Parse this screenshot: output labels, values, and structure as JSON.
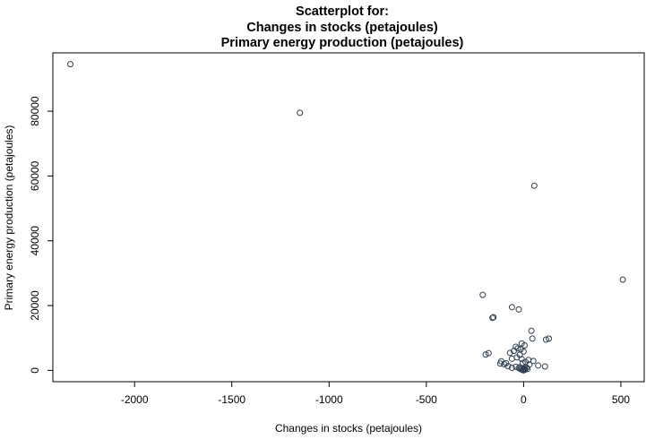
{
  "chart_data": {
    "type": "scatter",
    "title_lines": [
      "Scatterplot for:",
      "Changes in stocks (petajoules)",
      "Primary energy production (petajoules)"
    ],
    "xlabel": "Changes in stocks (petajoules)",
    "ylabel": "Primary energy production (petajoules)",
    "xlim": [
      -2420,
      620
    ],
    "ylim": [
      -3500,
      98000
    ],
    "x_ticks": [
      -2000,
      -1500,
      -1000,
      -500,
      0,
      500
    ],
    "y_ticks": [
      0,
      20000,
      40000,
      60000,
      80000
    ],
    "grid": false,
    "legend": "none",
    "point_color": "#2f3f52",
    "points": [
      [
        -2330,
        94500
      ],
      [
        -1150,
        79500
      ],
      [
        55,
        57000
      ],
      [
        510,
        28000
      ],
      [
        -210,
        23300
      ],
      [
        -60,
        19500
      ],
      [
        -25,
        18800
      ],
      [
        -155,
        16400
      ],
      [
        -160,
        16200
      ],
      [
        40,
        12200
      ],
      [
        130,
        9800
      ],
      [
        115,
        9500
      ],
      [
        45,
        9800
      ],
      [
        -10,
        8300
      ],
      [
        5,
        7700
      ],
      [
        -40,
        7300
      ],
      [
        -30,
        6800
      ],
      [
        -15,
        6500
      ],
      [
        -50,
        6000
      ],
      [
        0,
        5800
      ],
      [
        -70,
        5400
      ],
      [
        -180,
        5300
      ],
      [
        -195,
        4900
      ],
      [
        -20,
        4800
      ],
      [
        -35,
        4000
      ],
      [
        -60,
        3600
      ],
      [
        -10,
        3500
      ],
      [
        25,
        3200
      ],
      [
        50,
        2900
      ],
      [
        -115,
        2800
      ],
      [
        10,
        2600
      ],
      [
        -5,
        2300
      ],
      [
        -90,
        2200
      ],
      [
        -120,
        2100
      ],
      [
        -100,
        1900
      ],
      [
        30,
        1800
      ],
      [
        75,
        1500
      ],
      [
        -80,
        1300
      ],
      [
        110,
        1200
      ],
      [
        -40,
        1100
      ],
      [
        -20,
        950
      ],
      [
        15,
        900
      ],
      [
        -60,
        800
      ],
      [
        -25,
        700
      ],
      [
        5,
        600
      ],
      [
        -10,
        500
      ],
      [
        20,
        420
      ],
      [
        -15,
        350
      ],
      [
        0,
        300
      ],
      [
        8,
        250
      ],
      [
        -5,
        200
      ],
      [
        3,
        150
      ],
      [
        -2,
        100
      ],
      [
        1,
        60
      ],
      [
        -1,
        30
      ],
      [
        0,
        10
      ]
    ]
  }
}
